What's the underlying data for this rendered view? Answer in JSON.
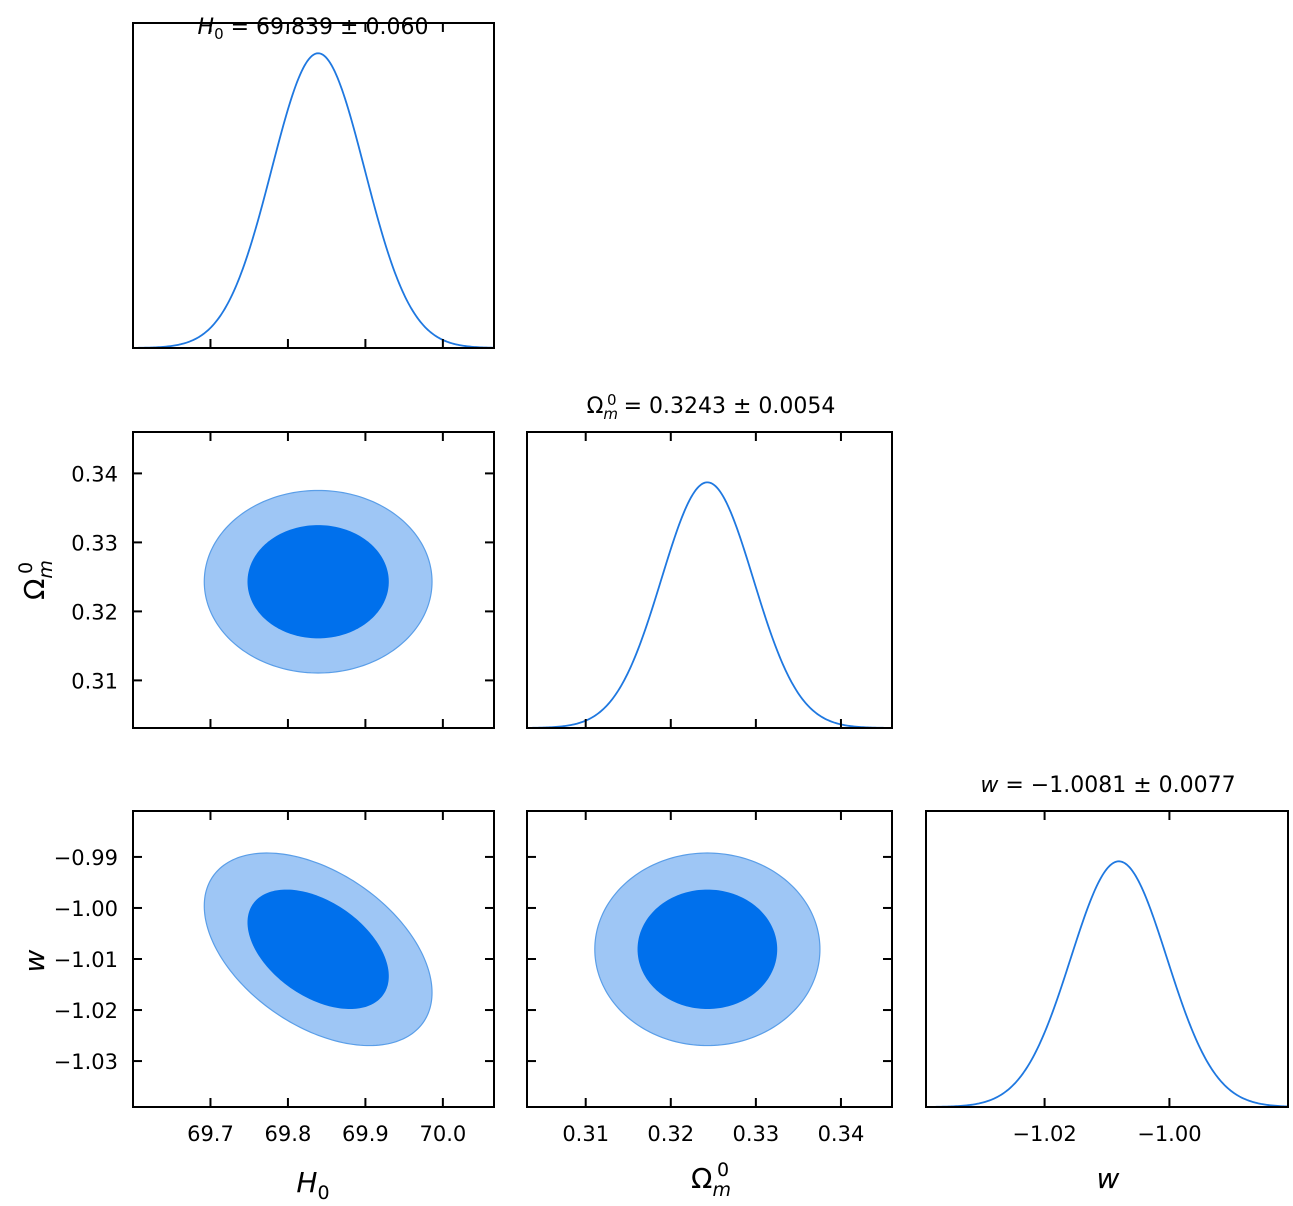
{
  "chart_data": {
    "type": "corner",
    "parameters": [
      {
        "key": "H0",
        "label_main": "H",
        "label_sub": "0",
        "label_sup": "",
        "mean": 69.839,
        "sigma": 0.06,
        "title_text": "H0 = 69.839 ± 0.060",
        "range": [
          69.6,
          70.066
        ],
        "ticks": [
          69.7,
          69.8,
          69.9,
          70.0
        ],
        "tick_labels": [
          "69.7",
          "69.8",
          "69.9",
          "70.0"
        ]
      },
      {
        "key": "Om",
        "label_main": "Ω",
        "label_sub": "m",
        "label_sup": "0",
        "mean": 0.3243,
        "sigma": 0.0054,
        "title_text": "Ωm0 = 0.3243 ± 0.0054",
        "range": [
          0.3031,
          0.346
        ],
        "ticks": [
          0.31,
          0.32,
          0.33,
          0.34
        ],
        "tick_labels": [
          "0.31",
          "0.32",
          "0.33",
          "0.34"
        ]
      },
      {
        "key": "w",
        "label_main": "w",
        "label_sub": "",
        "label_sup": "",
        "mean": -1.0081,
        "sigma": 0.0077,
        "title_text": "w = −1.0081 ± 0.0077",
        "range": [
          -1.039,
          -0.981
        ],
        "ticks": [
          -1.03,
          -1.02,
          -1.01,
          -1.0,
          -0.99
        ],
        "tick_labels": [
          "−1.03",
          "−1.02",
          "−1.01",
          "−1.00",
          "−0.99"
        ]
      }
    ],
    "diag_tick_labels_w": [
      "−1.02",
      "−1.00"
    ],
    "diag_ticks_w": [
      -1.02,
      -1.0
    ],
    "correlations": {
      "H0_Om": 0.0,
      "H0_w": -0.45,
      "Om_w": 0.0
    },
    "contour_levels": [
      "68%",
      "95%"
    ],
    "colors": {
      "line": "#1f78e0",
      "contour68": "#0070ec",
      "contour95": "#9ec6f5",
      "contour95_edge": "#5a9ee8"
    }
  }
}
